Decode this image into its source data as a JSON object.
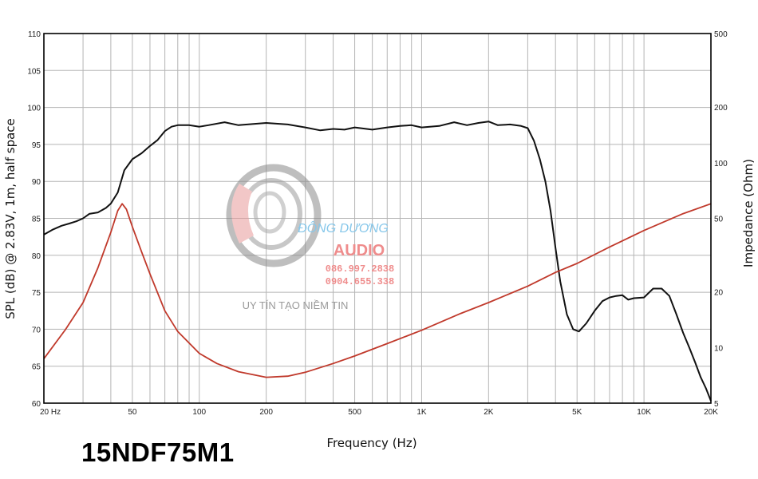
{
  "model_label": "15NDF75M1",
  "watermark": {
    "brand": "ĐÔNG DƯƠNG",
    "sub": "AUDIO",
    "phone1": "086.997.2838",
    "phone2": "0904.655.338",
    "tagline": "UY TÍN TẠO NIỀM TIN"
  },
  "colors": {
    "spl": "#111111",
    "impedance": "#c0392b",
    "grid": "#b5b5b5",
    "frame": "#000000"
  },
  "chart_data": {
    "type": "line",
    "xlabel": "Frequency (Hz)",
    "ylabel": "SPL (dB) @ 2.83V, 1m, half space",
    "y2label": "Impedance (Ohm)",
    "xscale": "log",
    "xlim": [
      20,
      20000
    ],
    "ylim": [
      60,
      110
    ],
    "y2scale": "log",
    "y2lim": [
      5,
      500
    ],
    "grid": true,
    "x_ticks": [
      {
        "value": 20,
        "label": "20  Hz"
      },
      {
        "value": 50,
        "label": "50"
      },
      {
        "value": 100,
        "label": "100"
      },
      {
        "value": 200,
        "label": "200"
      },
      {
        "value": 500,
        "label": "500"
      },
      {
        "value": 1000,
        "label": "1K"
      },
      {
        "value": 2000,
        "label": "2K"
      },
      {
        "value": 5000,
        "label": "5K"
      },
      {
        "value": 10000,
        "label": "10K"
      },
      {
        "value": 20000,
        "label": "20K"
      }
    ],
    "y_ticks": [
      {
        "value": 60,
        "label": "60"
      },
      {
        "value": 65,
        "label": "65"
      },
      {
        "value": 70,
        "label": "70"
      },
      {
        "value": 75,
        "label": "75"
      },
      {
        "value": 80,
        "label": "80"
      },
      {
        "value": 85,
        "label": "85"
      },
      {
        "value": 90,
        "label": "90"
      },
      {
        "value": 95,
        "label": "95"
      },
      {
        "value": 100,
        "label": "100"
      },
      {
        "value": 105,
        "label": "105"
      },
      {
        "value": 110,
        "label": "110"
      }
    ],
    "y2_ticks": [
      {
        "value": 5,
        "label": "5"
      },
      {
        "value": 10,
        "label": "10"
      },
      {
        "value": 20,
        "label": "20"
      },
      {
        "value": 50,
        "label": "50"
      },
      {
        "value": 100,
        "label": "100"
      },
      {
        "value": 200,
        "label": "200"
      },
      {
        "value": 500,
        "label": "500"
      }
    ],
    "series": [
      {
        "axis": "left",
        "points": [
          [
            20,
            82.8
          ],
          [
            22,
            83.5
          ],
          [
            24,
            84.0
          ],
          [
            26,
            84.3
          ],
          [
            28,
            84.6
          ],
          [
            30,
            85.0
          ],
          [
            32,
            85.6
          ],
          [
            35,
            85.8
          ],
          [
            38,
            86.4
          ],
          [
            40,
            87.0
          ],
          [
            43,
            88.5
          ],
          [
            46,
            91.5
          ],
          [
            50,
            93.0
          ],
          [
            55,
            93.8
          ],
          [
            60,
            94.8
          ],
          [
            65,
            95.6
          ],
          [
            70,
            96.8
          ],
          [
            75,
            97.4
          ],
          [
            80,
            97.6
          ],
          [
            90,
            97.6
          ],
          [
            100,
            97.4
          ],
          [
            110,
            97.6
          ],
          [
            130,
            98.0
          ],
          [
            150,
            97.6
          ],
          [
            180,
            97.8
          ],
          [
            200,
            97.9
          ],
          [
            250,
            97.7
          ],
          [
            300,
            97.3
          ],
          [
            350,
            96.9
          ],
          [
            400,
            97.1
          ],
          [
            450,
            97.0
          ],
          [
            500,
            97.3
          ],
          [
            600,
            97.0
          ],
          [
            700,
            97.3
          ],
          [
            800,
            97.5
          ],
          [
            900,
            97.6
          ],
          [
            1000,
            97.3
          ],
          [
            1200,
            97.5
          ],
          [
            1400,
            98.0
          ],
          [
            1600,
            97.6
          ],
          [
            1800,
            97.9
          ],
          [
            2000,
            98.1
          ],
          [
            2200,
            97.6
          ],
          [
            2500,
            97.7
          ],
          [
            2800,
            97.5
          ],
          [
            3000,
            97.2
          ],
          [
            3200,
            95.5
          ],
          [
            3400,
            93.0
          ],
          [
            3600,
            90.0
          ],
          [
            3800,
            86.0
          ],
          [
            4000,
            81.0
          ],
          [
            4200,
            76.5
          ],
          [
            4500,
            72.0
          ],
          [
            4800,
            70.0
          ],
          [
            5100,
            69.7
          ],
          [
            5500,
            70.8
          ],
          [
            6000,
            72.5
          ],
          [
            6500,
            73.8
          ],
          [
            7000,
            74.3
          ],
          [
            7500,
            74.5
          ],
          [
            8000,
            74.6
          ],
          [
            8500,
            74.0
          ],
          [
            9000,
            74.2
          ],
          [
            10000,
            74.3
          ],
          [
            11000,
            75.5
          ],
          [
            12000,
            75.5
          ],
          [
            13000,
            74.5
          ],
          [
            14000,
            72.0
          ],
          [
            15000,
            69.5
          ],
          [
            16000,
            67.5
          ],
          [
            17000,
            65.5
          ],
          [
            18000,
            63.5
          ],
          [
            19000,
            62.0
          ],
          [
            20000,
            60.3
          ]
        ]
      },
      {
        "axis": "right",
        "points": [
          [
            20,
            8.7
          ],
          [
            25,
            12.5
          ],
          [
            30,
            17.5
          ],
          [
            35,
            27
          ],
          [
            40,
            42
          ],
          [
            43,
            55
          ],
          [
            45,
            60
          ],
          [
            47,
            56
          ],
          [
            50,
            45
          ],
          [
            55,
            33
          ],
          [
            60,
            25
          ],
          [
            70,
            15.8
          ],
          [
            80,
            12.2
          ],
          [
            100,
            9.3
          ],
          [
            120,
            8.2
          ],
          [
            150,
            7.4
          ],
          [
            200,
            6.9
          ],
          [
            250,
            7.0
          ],
          [
            300,
            7.35
          ],
          [
            400,
            8.2
          ],
          [
            500,
            9.0
          ],
          [
            700,
            10.5
          ],
          [
            1000,
            12.4
          ],
          [
            1500,
            15.3
          ],
          [
            2000,
            17.5
          ],
          [
            3000,
            21.5
          ],
          [
            4000,
            25.5
          ],
          [
            5000,
            28.5
          ],
          [
            7000,
            35
          ],
          [
            10000,
            43
          ],
          [
            15000,
            53
          ],
          [
            20000,
            60
          ]
        ]
      }
    ]
  }
}
